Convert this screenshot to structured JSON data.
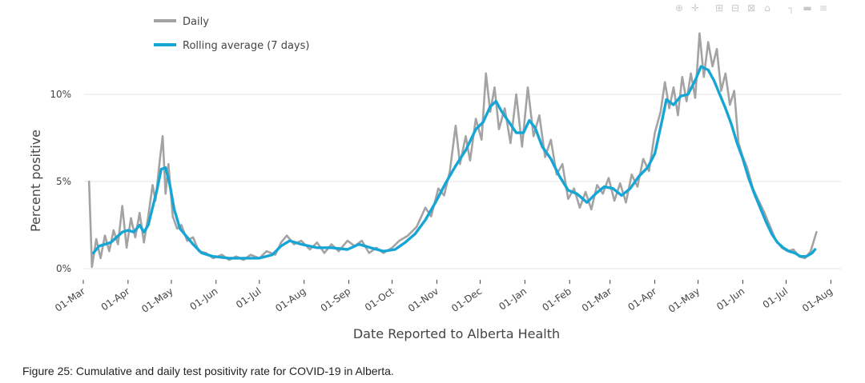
{
  "figure": {
    "caption": "Figure 25: Cumulative and daily test positivity rate for COVID-19 in Alberta."
  },
  "toolbar": {
    "icons": [
      "zoom-icon",
      "pan-icon",
      "zoom-in-icon",
      "zoom-out-icon",
      "autoscale-icon",
      "reset-axes-icon",
      "spike-lines-icon",
      "hover-closest-icon",
      "hover-compare-icon"
    ]
  },
  "colors": {
    "daily": "#a3a3a3",
    "rolling": "#16a6d6",
    "grid": "#e5e5e5"
  },
  "chart_data": {
    "type": "line",
    "title": "",
    "xlabel": "Date Reported to Alberta Health",
    "ylabel": "Percent positive",
    "x_ticks": [
      "01-Mar",
      "01-Apr",
      "01-May",
      "01-Jun",
      "01-Jul",
      "01-Aug",
      "01-Sep",
      "01-Oct",
      "01-Nov",
      "01-Dec",
      "01-Jan",
      "01-Feb",
      "01-Mar",
      "01-Apr",
      "01-May",
      "01-Jun",
      "01-Jul",
      "01-Aug"
    ],
    "y_ticks": [
      "0%",
      "5%",
      "10%"
    ],
    "ylim": [
      0,
      13.6
    ],
    "grid": true,
    "legend_position": "top-left",
    "series": [
      {
        "name": "Daily",
        "points": [
          [
            "2020-03-05",
            5.0
          ],
          [
            "2020-03-07",
            0.1
          ],
          [
            "2020-03-10",
            1.7
          ],
          [
            "2020-03-13",
            0.6
          ],
          [
            "2020-03-16",
            1.9
          ],
          [
            "2020-03-19",
            1.0
          ],
          [
            "2020-03-22",
            2.2
          ],
          [
            "2020-03-25",
            1.4
          ],
          [
            "2020-03-28",
            3.6
          ],
          [
            "2020-03-31",
            1.2
          ],
          [
            "2020-04-03",
            2.9
          ],
          [
            "2020-04-06",
            1.8
          ],
          [
            "2020-04-09",
            3.2
          ],
          [
            "2020-04-12",
            1.5
          ],
          [
            "2020-04-15",
            3.0
          ],
          [
            "2020-04-18",
            4.8
          ],
          [
            "2020-04-20",
            3.9
          ],
          [
            "2020-04-23",
            6.2
          ],
          [
            "2020-04-25",
            7.6
          ],
          [
            "2020-04-27",
            4.3
          ],
          [
            "2020-04-29",
            6.0
          ],
          [
            "2020-05-02",
            3.0
          ],
          [
            "2020-05-05",
            2.3
          ],
          [
            "2020-05-08",
            2.5
          ],
          [
            "2020-05-12",
            1.6
          ],
          [
            "2020-05-16",
            1.8
          ],
          [
            "2020-05-20",
            1.0
          ],
          [
            "2020-05-25",
            0.9
          ],
          [
            "2020-05-30",
            0.6
          ],
          [
            "2020-06-05",
            0.8
          ],
          [
            "2020-06-10",
            0.5
          ],
          [
            "2020-06-15",
            0.7
          ],
          [
            "2020-06-20",
            0.5
          ],
          [
            "2020-06-25",
            0.8
          ],
          [
            "2020-07-01",
            0.6
          ],
          [
            "2020-07-06",
            1.0
          ],
          [
            "2020-07-12",
            0.8
          ],
          [
            "2020-07-16",
            1.5
          ],
          [
            "2020-07-20",
            1.9
          ],
          [
            "2020-07-25",
            1.4
          ],
          [
            "2020-07-30",
            1.6
          ],
          [
            "2020-08-05",
            1.1
          ],
          [
            "2020-08-10",
            1.5
          ],
          [
            "2020-08-15",
            0.9
          ],
          [
            "2020-08-20",
            1.4
          ],
          [
            "2020-08-25",
            1.0
          ],
          [
            "2020-08-31",
            1.6
          ],
          [
            "2020-09-05",
            1.3
          ],
          [
            "2020-09-10",
            1.6
          ],
          [
            "2020-09-15",
            0.9
          ],
          [
            "2020-09-20",
            1.2
          ],
          [
            "2020-09-25",
            0.9
          ],
          [
            "2020-10-01",
            1.2
          ],
          [
            "2020-10-06",
            1.6
          ],
          [
            "2020-10-12",
            1.9
          ],
          [
            "2020-10-18",
            2.4
          ],
          [
            "2020-10-24",
            3.5
          ],
          [
            "2020-10-28",
            3.0
          ],
          [
            "2020-11-02",
            4.6
          ],
          [
            "2020-11-06",
            4.2
          ],
          [
            "2020-11-10",
            5.6
          ],
          [
            "2020-11-14",
            8.2
          ],
          [
            "2020-11-17",
            6.0
          ],
          [
            "2020-11-21",
            7.6
          ],
          [
            "2020-11-24",
            6.2
          ],
          [
            "2020-11-28",
            8.6
          ],
          [
            "2020-12-02",
            7.4
          ],
          [
            "2020-12-05",
            11.2
          ],
          [
            "2020-12-08",
            9.0
          ],
          [
            "2020-12-11",
            10.4
          ],
          [
            "2020-12-14",
            8.0
          ],
          [
            "2020-12-18",
            9.2
          ],
          [
            "2020-12-22",
            7.2
          ],
          [
            "2020-12-26",
            10.0
          ],
          [
            "2020-12-30",
            7.0
          ],
          [
            "2021-01-03",
            10.4
          ],
          [
            "2021-01-07",
            7.6
          ],
          [
            "2021-01-11",
            8.8
          ],
          [
            "2021-01-15",
            6.4
          ],
          [
            "2021-01-19",
            7.4
          ],
          [
            "2021-01-23",
            5.4
          ],
          [
            "2021-01-27",
            6.0
          ],
          [
            "2021-01-31",
            4.0
          ],
          [
            "2021-02-04",
            4.6
          ],
          [
            "2021-02-08",
            3.5
          ],
          [
            "2021-02-12",
            4.4
          ],
          [
            "2021-02-16",
            3.4
          ],
          [
            "2021-02-20",
            4.8
          ],
          [
            "2021-02-24",
            4.3
          ],
          [
            "2021-02-28",
            5.2
          ],
          [
            "2021-03-04",
            3.9
          ],
          [
            "2021-03-08",
            4.9
          ],
          [
            "2021-03-12",
            3.8
          ],
          [
            "2021-03-16",
            5.4
          ],
          [
            "2021-03-20",
            4.7
          ],
          [
            "2021-03-24",
            6.3
          ],
          [
            "2021-03-28",
            5.6
          ],
          [
            "2021-04-01",
            7.8
          ],
          [
            "2021-04-05",
            9.0
          ],
          [
            "2021-04-08",
            10.7
          ],
          [
            "2021-04-11",
            9.2
          ],
          [
            "2021-04-14",
            10.4
          ],
          [
            "2021-04-17",
            8.8
          ],
          [
            "2021-04-20",
            11.0
          ],
          [
            "2021-04-23",
            9.6
          ],
          [
            "2021-04-26",
            11.2
          ],
          [
            "2021-04-29",
            9.8
          ],
          [
            "2021-05-02",
            13.5
          ],
          [
            "2021-05-05",
            11.0
          ],
          [
            "2021-05-08",
            13.0
          ],
          [
            "2021-05-11",
            11.6
          ],
          [
            "2021-05-14",
            12.6
          ],
          [
            "2021-05-17",
            10.2
          ],
          [
            "2021-05-20",
            11.2
          ],
          [
            "2021-05-23",
            9.4
          ],
          [
            "2021-05-26",
            10.2
          ],
          [
            "2021-05-29",
            7.2
          ],
          [
            "2021-06-01",
            6.4
          ],
          [
            "2021-06-04",
            5.8
          ],
          [
            "2021-06-08",
            4.6
          ],
          [
            "2021-06-12",
            3.9
          ],
          [
            "2021-06-16",
            3.2
          ],
          [
            "2021-06-20",
            2.4
          ],
          [
            "2021-06-24",
            1.6
          ],
          [
            "2021-06-28",
            1.2
          ],
          [
            "2021-07-02",
            1.0
          ],
          [
            "2021-07-06",
            1.1
          ],
          [
            "2021-07-10",
            0.7
          ],
          [
            "2021-07-14",
            0.6
          ],
          [
            "2021-07-18",
            1.0
          ],
          [
            "2021-07-22",
            2.1
          ]
        ]
      },
      {
        "name": "Rolling average (7 days)",
        "points": [
          [
            "2020-03-08",
            0.9
          ],
          [
            "2020-03-12",
            1.3
          ],
          [
            "2020-03-16",
            1.4
          ],
          [
            "2020-03-20",
            1.5
          ],
          [
            "2020-03-24",
            1.8
          ],
          [
            "2020-03-28",
            2.1
          ],
          [
            "2020-04-01",
            2.2
          ],
          [
            "2020-04-05",
            2.1
          ],
          [
            "2020-04-09",
            2.5
          ],
          [
            "2020-04-12",
            2.1
          ],
          [
            "2020-04-15",
            2.5
          ],
          [
            "2020-04-18",
            3.5
          ],
          [
            "2020-04-21",
            4.5
          ],
          [
            "2020-04-24",
            5.7
          ],
          [
            "2020-04-27",
            5.8
          ],
          [
            "2020-04-30",
            4.8
          ],
          [
            "2020-05-03",
            3.4
          ],
          [
            "2020-05-07",
            2.3
          ],
          [
            "2020-05-11",
            1.9
          ],
          [
            "2020-05-16",
            1.4
          ],
          [
            "2020-05-22",
            0.9
          ],
          [
            "2020-05-30",
            0.7
          ],
          [
            "2020-06-10",
            0.6
          ],
          [
            "2020-06-20",
            0.6
          ],
          [
            "2020-07-01",
            0.6
          ],
          [
            "2020-07-10",
            0.8
          ],
          [
            "2020-07-16",
            1.3
          ],
          [
            "2020-07-22",
            1.6
          ],
          [
            "2020-07-30",
            1.4
          ],
          [
            "2020-08-10",
            1.2
          ],
          [
            "2020-08-20",
            1.2
          ],
          [
            "2020-08-31",
            1.1
          ],
          [
            "2020-09-08",
            1.4
          ],
          [
            "2020-09-16",
            1.2
          ],
          [
            "2020-09-25",
            1.0
          ],
          [
            "2020-10-03",
            1.1
          ],
          [
            "2020-10-10",
            1.5
          ],
          [
            "2020-10-17",
            2.0
          ],
          [
            "2020-10-24",
            2.8
          ],
          [
            "2020-10-31",
            3.8
          ],
          [
            "2020-11-07",
            4.9
          ],
          [
            "2020-11-14",
            5.9
          ],
          [
            "2020-11-21",
            6.8
          ],
          [
            "2020-11-28",
            8.0
          ],
          [
            "2020-12-03",
            8.4
          ],
          [
            "2020-12-08",
            9.3
          ],
          [
            "2020-12-12",
            9.6
          ],
          [
            "2020-12-16",
            9.0
          ],
          [
            "2020-12-21",
            8.4
          ],
          [
            "2020-12-26",
            7.8
          ],
          [
            "2020-12-31",
            7.8
          ],
          [
            "2021-01-04",
            8.5
          ],
          [
            "2021-01-08",
            8.1
          ],
          [
            "2021-01-13",
            7.0
          ],
          [
            "2021-01-19",
            6.3
          ],
          [
            "2021-01-25",
            5.3
          ],
          [
            "2021-01-31",
            4.5
          ],
          [
            "2021-02-06",
            4.3
          ],
          [
            "2021-02-13",
            3.8
          ],
          [
            "2021-02-19",
            4.3
          ],
          [
            "2021-02-25",
            4.7
          ],
          [
            "2021-03-03",
            4.6
          ],
          [
            "2021-03-09",
            4.2
          ],
          [
            "2021-03-15",
            4.6
          ],
          [
            "2021-03-21",
            5.3
          ],
          [
            "2021-03-27",
            5.8
          ],
          [
            "2021-04-01",
            6.6
          ],
          [
            "2021-04-06",
            8.5
          ],
          [
            "2021-04-09",
            9.7
          ],
          [
            "2021-04-14",
            9.4
          ],
          [
            "2021-04-19",
            9.9
          ],
          [
            "2021-04-24",
            10.0
          ],
          [
            "2021-04-29",
            10.8
          ],
          [
            "2021-05-03",
            11.6
          ],
          [
            "2021-05-08",
            11.4
          ],
          [
            "2021-05-12",
            10.8
          ],
          [
            "2021-05-16",
            10.0
          ],
          [
            "2021-05-20",
            9.2
          ],
          [
            "2021-05-24",
            8.3
          ],
          [
            "2021-05-28",
            7.2
          ],
          [
            "2021-06-01",
            6.3
          ],
          [
            "2021-06-05",
            5.2
          ],
          [
            "2021-06-09",
            4.3
          ],
          [
            "2021-06-13",
            3.5
          ],
          [
            "2021-06-17",
            2.7
          ],
          [
            "2021-06-21",
            2.0
          ],
          [
            "2021-06-25",
            1.5
          ],
          [
            "2021-06-29",
            1.2
          ],
          [
            "2021-07-03",
            1.0
          ],
          [
            "2021-07-07",
            0.9
          ],
          [
            "2021-07-11",
            0.7
          ],
          [
            "2021-07-15",
            0.7
          ],
          [
            "2021-07-19",
            0.9
          ],
          [
            "2021-07-21",
            1.1
          ]
        ]
      }
    ]
  }
}
